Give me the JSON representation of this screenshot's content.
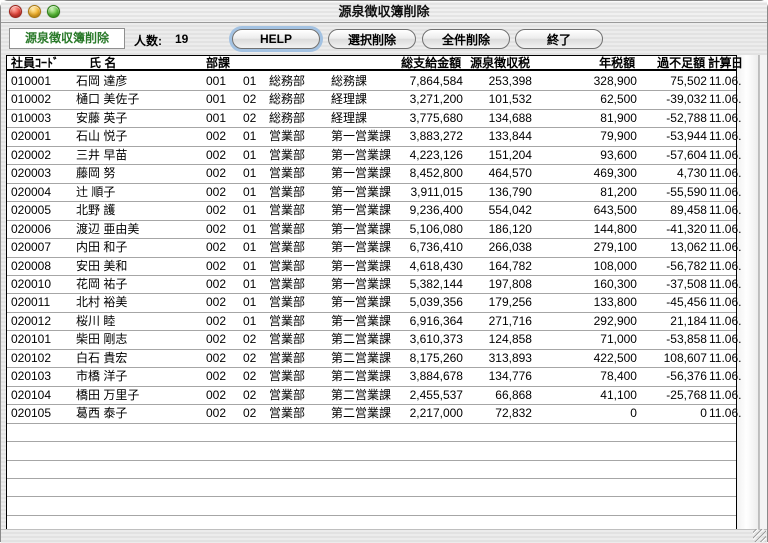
{
  "titlebar": {
    "title": "源泉徴収簿削除"
  },
  "toolbar": {
    "mode_label": "源泉徴収簿削除",
    "count_label": "人数:",
    "count_value": "19",
    "buttons": [
      {
        "label": "HELP"
      },
      {
        "label": "選択削除"
      },
      {
        "label": "全件削除"
      },
      {
        "label": "終了"
      }
    ]
  },
  "table": {
    "columns": [
      "社員ｺｰﾄﾞ",
      "氏 名",
      "部課",
      "総支給金額",
      "源泉徴収税",
      "年税額",
      "過不足額",
      "計算日"
    ],
    "rows": [
      {
        "code": "010001",
        "name": "石岡 達彦",
        "dept_code": "001",
        "sect_code": "01",
        "dept": "総務部",
        "section": "総務課",
        "total": "7,864,584",
        "tax": "253,398",
        "annual": "328,900",
        "diff": "75,502",
        "date": "11.06."
      },
      {
        "code": "010002",
        "name": "樋口 美佐子",
        "dept_code": "001",
        "sect_code": "02",
        "dept": "総務部",
        "section": "経理課",
        "total": "3,271,200",
        "tax": "101,532",
        "annual": "62,500",
        "diff": "-39,032",
        "date": "11.06."
      },
      {
        "code": "010003",
        "name": "安藤 英子",
        "dept_code": "001",
        "sect_code": "02",
        "dept": "総務部",
        "section": "経理課",
        "total": "3,775,680",
        "tax": "134,688",
        "annual": "81,900",
        "diff": "-52,788",
        "date": "11.06."
      },
      {
        "code": "020001",
        "name": "石山 悦子",
        "dept_code": "002",
        "sect_code": "01",
        "dept": "営業部",
        "section": "第一営業課",
        "total": "3,883,272",
        "tax": "133,844",
        "annual": "79,900",
        "diff": "-53,944",
        "date": "11.06."
      },
      {
        "code": "020002",
        "name": "三井 早苗",
        "dept_code": "002",
        "sect_code": "01",
        "dept": "営業部",
        "section": "第一営業課",
        "total": "4,223,126",
        "tax": "151,204",
        "annual": "93,600",
        "diff": "-57,604",
        "date": "11.06."
      },
      {
        "code": "020003",
        "name": "藤岡 努",
        "dept_code": "002",
        "sect_code": "01",
        "dept": "営業部",
        "section": "第一営業課",
        "total": "8,452,800",
        "tax": "464,570",
        "annual": "469,300",
        "diff": "4,730",
        "date": "11.06."
      },
      {
        "code": "020004",
        "name": "辻 順子",
        "dept_code": "002",
        "sect_code": "01",
        "dept": "営業部",
        "section": "第一営業課",
        "total": "3,911,015",
        "tax": "136,790",
        "annual": "81,200",
        "diff": "-55,590",
        "date": "11.06."
      },
      {
        "code": "020005",
        "name": "北野 護",
        "dept_code": "002",
        "sect_code": "01",
        "dept": "営業部",
        "section": "第一営業課",
        "total": "9,236,400",
        "tax": "554,042",
        "annual": "643,500",
        "diff": "89,458",
        "date": "11.06."
      },
      {
        "code": "020006",
        "name": "渡辺 亜由美",
        "dept_code": "002",
        "sect_code": "01",
        "dept": "営業部",
        "section": "第一営業課",
        "total": "5,106,080",
        "tax": "186,120",
        "annual": "144,800",
        "diff": "-41,320",
        "date": "11.06."
      },
      {
        "code": "020007",
        "name": "内田 和子",
        "dept_code": "002",
        "sect_code": "01",
        "dept": "営業部",
        "section": "第一営業課",
        "total": "6,736,410",
        "tax": "266,038",
        "annual": "279,100",
        "diff": "13,062",
        "date": "11.06."
      },
      {
        "code": "020008",
        "name": "安田 美和",
        "dept_code": "002",
        "sect_code": "01",
        "dept": "営業部",
        "section": "第一営業課",
        "total": "4,618,430",
        "tax": "164,782",
        "annual": "108,000",
        "diff": "-56,782",
        "date": "11.06."
      },
      {
        "code": "020010",
        "name": "花岡 祐子",
        "dept_code": "002",
        "sect_code": "01",
        "dept": "営業部",
        "section": "第一営業課",
        "total": "5,382,144",
        "tax": "197,808",
        "annual": "160,300",
        "diff": "-37,508",
        "date": "11.06."
      },
      {
        "code": "020011",
        "name": "北村 裕美",
        "dept_code": "002",
        "sect_code": "01",
        "dept": "営業部",
        "section": "第一営業課",
        "total": "5,039,356",
        "tax": "179,256",
        "annual": "133,800",
        "diff": "-45,456",
        "date": "11.06."
      },
      {
        "code": "020012",
        "name": "桜川 睦",
        "dept_code": "002",
        "sect_code": "01",
        "dept": "営業部",
        "section": "第一営業課",
        "total": "6,916,364",
        "tax": "271,716",
        "annual": "292,900",
        "diff": "21,184",
        "date": "11.06."
      },
      {
        "code": "020101",
        "name": "柴田 剛志",
        "dept_code": "002",
        "sect_code": "02",
        "dept": "営業部",
        "section": "第二営業課",
        "total": "3,610,373",
        "tax": "124,858",
        "annual": "71,000",
        "diff": "-53,858",
        "date": "11.06."
      },
      {
        "code": "020102",
        "name": "白石 貴宏",
        "dept_code": "002",
        "sect_code": "02",
        "dept": "営業部",
        "section": "第二営業課",
        "total": "8,175,260",
        "tax": "313,893",
        "annual": "422,500",
        "diff": "108,607",
        "date": "11.06."
      },
      {
        "code": "020103",
        "name": "市橋 洋子",
        "dept_code": "002",
        "sect_code": "02",
        "dept": "営業部",
        "section": "第二営業課",
        "total": "3,884,678",
        "tax": "134,776",
        "annual": "78,400",
        "diff": "-56,376",
        "date": "11.06."
      },
      {
        "code": "020104",
        "name": "橋田 万里子",
        "dept_code": "002",
        "sect_code": "02",
        "dept": "営業部",
        "section": "第二営業課",
        "total": "2,455,537",
        "tax": "66,868",
        "annual": "41,100",
        "diff": "-25,768",
        "date": "11.06."
      },
      {
        "code": "020105",
        "name": "葛西 泰子",
        "dept_code": "002",
        "sect_code": "02",
        "dept": "営業部",
        "section": "第二営業課",
        "total": "2,217,000",
        "tax": "72,832",
        "annual": "0",
        "diff": "0",
        "date": "11.06."
      }
    ]
  },
  "colors": {
    "mode_label_green": "#2a7a2a",
    "default_button_ring": "#a3c2e2",
    "row_divider": "#a6a6a6",
    "table_border": "#000000"
  }
}
